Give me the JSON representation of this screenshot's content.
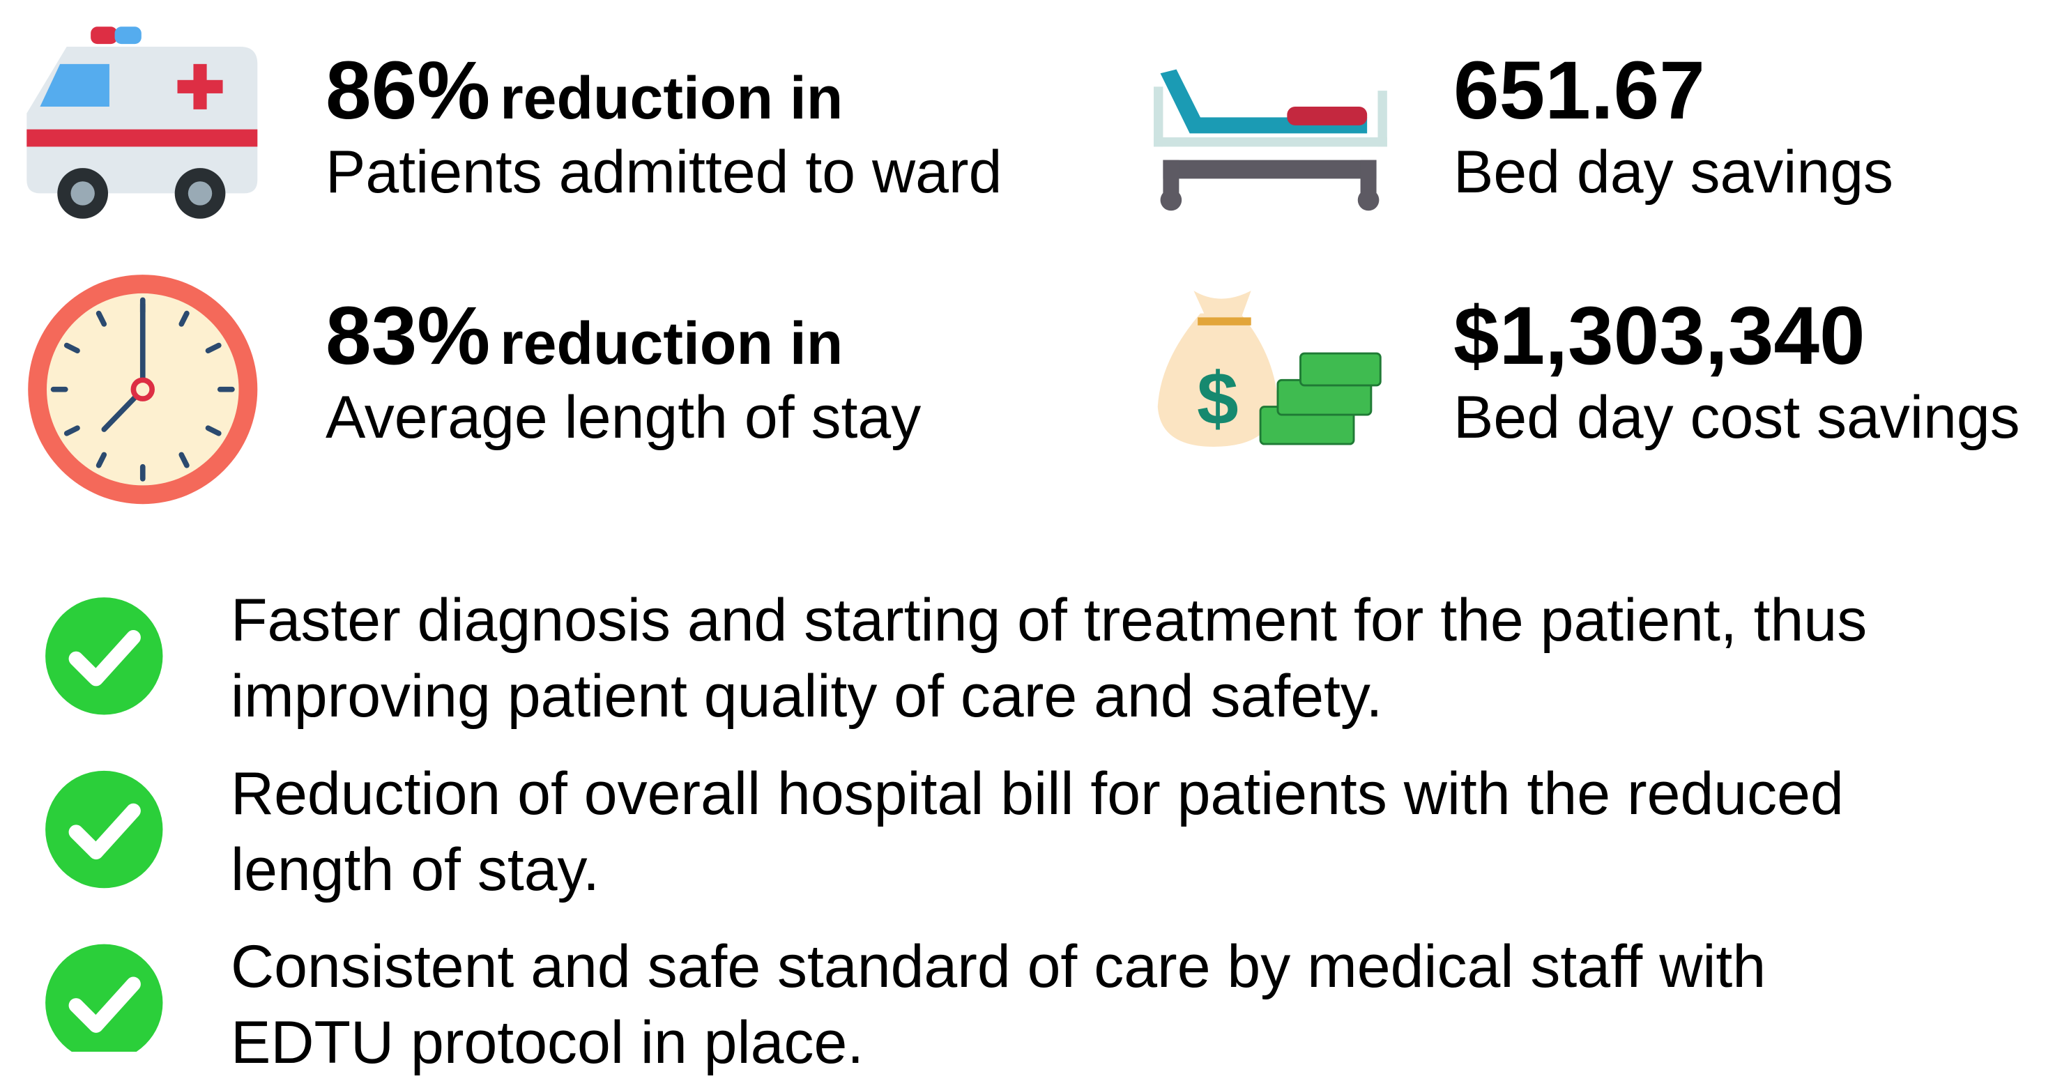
{
  "stats": [
    {
      "value": "86%",
      "label": "reduction in",
      "caption": "Patients admitted to ward"
    },
    {
      "value": "651.67",
      "caption": "Bed day savings"
    },
    {
      "value": "83%",
      "label": "reduction in",
      "caption": "Average length of stay"
    },
    {
      "value": "$1,303,340",
      "caption": "Bed day cost savings"
    }
  ],
  "benefits": [
    {
      "lines": [
        "Faster diagnosis and starting of treatment for the patient, thus",
        "improving patient quality of care and safety."
      ]
    },
    {
      "lines": [
        "Reduction of overall hospital bill for patients with the reduced",
        "length of stay."
      ]
    },
    {
      "lines": [
        "Consistent and safe standard of care by medical staff with",
        "EDTU protocol in place."
      ]
    }
  ]
}
